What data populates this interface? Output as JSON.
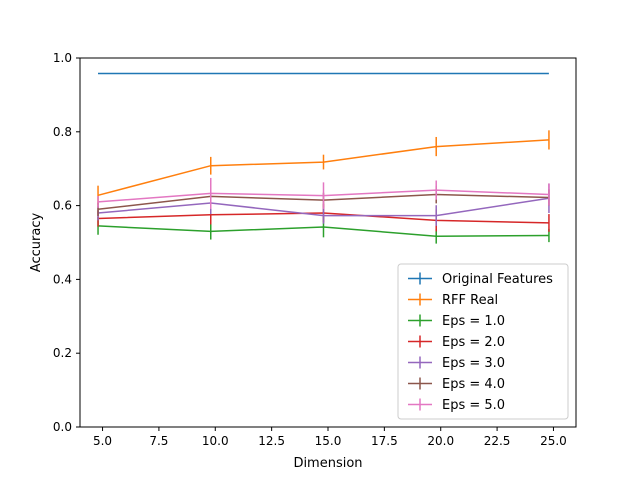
{
  "chart_data": {
    "type": "line",
    "xlabel": "Dimension",
    "ylabel": "Accuracy",
    "xlim": [
      4.0,
      26.0
    ],
    "ylim": [
      0.0,
      1.0
    ],
    "xticks": [
      5.0,
      7.5,
      10.0,
      12.5,
      15.0,
      17.5,
      20.0,
      22.5,
      25.0
    ],
    "xtick_labels": [
      "5.0",
      "7.5",
      "10.0",
      "12.5",
      "15.0",
      "17.5",
      "20.0",
      "22.5",
      "25.0"
    ],
    "yticks": [
      0.0,
      0.2,
      0.4,
      0.6,
      0.8,
      1.0
    ],
    "ytick_labels": [
      "0.0",
      "0.2",
      "0.4",
      "0.6",
      "0.8",
      "1.0"
    ],
    "grid": false,
    "legend_position": "lower right",
    "series": [
      {
        "name": "Original Features",
        "color": "#1f77b4",
        "x": [
          4.8,
          9.8,
          14.8,
          19.8,
          24.8
        ],
        "y": [
          0.958,
          0.958,
          0.958,
          0.958,
          0.958
        ],
        "err": [
          0.0,
          0.0,
          0.0,
          0.0,
          0.0
        ]
      },
      {
        "name": "RFF Real",
        "color": "#ff7f0e",
        "x": [
          4.8,
          9.8,
          14.8,
          19.8,
          24.8
        ],
        "y": [
          0.628,
          0.708,
          0.718,
          0.76,
          0.778
        ],
        "err": [
          0.026,
          0.024,
          0.02,
          0.026,
          0.026
        ]
      },
      {
        "name": "Eps = 1.0",
        "color": "#2ca02c",
        "x": [
          4.8,
          9.8,
          14.8,
          19.8,
          24.8
        ],
        "y": [
          0.545,
          0.53,
          0.542,
          0.517,
          0.519
        ],
        "err": [
          0.024,
          0.022,
          0.028,
          0.02,
          0.018
        ]
      },
      {
        "name": "Eps = 2.0",
        "color": "#d62728",
        "x": [
          4.8,
          9.8,
          14.8,
          19.8,
          24.8
        ],
        "y": [
          0.565,
          0.575,
          0.58,
          0.56,
          0.553
        ],
        "err": [
          0.022,
          0.026,
          0.025,
          0.03,
          0.024
        ]
      },
      {
        "name": "Eps = 3.0",
        "color": "#9467bd",
        "x": [
          4.8,
          9.8,
          14.8,
          19.8,
          24.8
        ],
        "y": [
          0.58,
          0.607,
          0.573,
          0.573,
          0.62
        ],
        "err": [
          0.02,
          0.03,
          0.022,
          0.028,
          0.04
        ]
      },
      {
        "name": "Eps = 4.0",
        "color": "#8c564b",
        "x": [
          4.8,
          9.8,
          14.8,
          19.8,
          24.8
        ],
        "y": [
          0.59,
          0.625,
          0.615,
          0.63,
          0.622
        ],
        "err": [
          0.018,
          0.022,
          0.02,
          0.024,
          0.022
        ]
      },
      {
        "name": "Eps = 5.0",
        "color": "#e377c2",
        "x": [
          4.8,
          9.8,
          14.8,
          19.8,
          24.8
        ],
        "y": [
          0.61,
          0.633,
          0.627,
          0.642,
          0.63
        ],
        "err": [
          0.016,
          0.042,
          0.036,
          0.026,
          0.03
        ]
      }
    ]
  }
}
